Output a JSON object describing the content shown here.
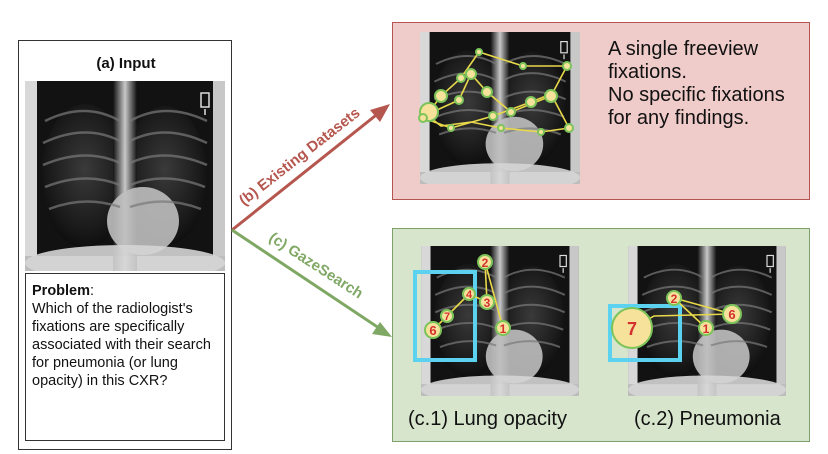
{
  "input_panel": {
    "title": "(a) Input",
    "problem_label": "Problem",
    "problem_text": "Which of the radiologist's fixations are specifically associated with their search for pneumonia (or lung opacity) in this CXR?"
  },
  "arrows": {
    "existing_label": "(b) Existing Datasets",
    "gazesearch_label": "(c) GazeSearch"
  },
  "existing_panel": {
    "line1": "A single freeview fixations.",
    "line2": "No specific fixations for any findings."
  },
  "gazesearch_panel": {
    "caption_lung": "(c.1) Lung opacity",
    "caption_pneumonia": "(c.2) Pneumonia",
    "lung_fixations": [
      "1",
      "2",
      "3",
      "4",
      "6",
      "7"
    ],
    "pneumonia_fixations": [
      "1",
      "2",
      "6",
      "7"
    ]
  },
  "colors": {
    "arrow_red": "#b5574f",
    "arrow_green": "#80a865",
    "bbox_cyan": "#5ad2f0",
    "fixation_fill": "#f6e29a",
    "fixation_stroke": "#7cc45a",
    "gaze_line": "#e8d84a"
  }
}
